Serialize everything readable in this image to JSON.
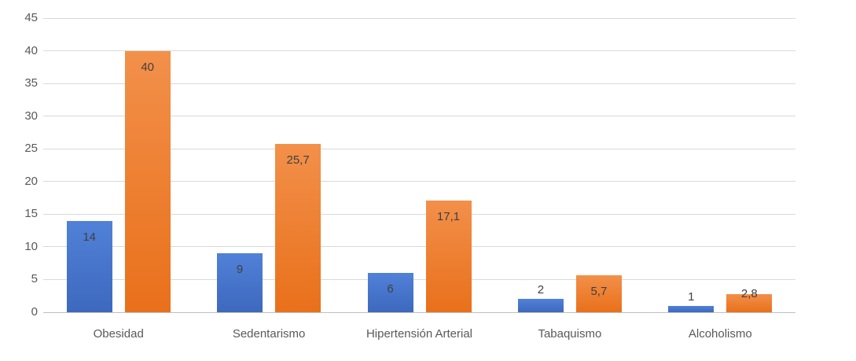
{
  "chart_data": {
    "type": "bar",
    "title": "",
    "categories": [
      "Obesidad",
      "Sedentarismo",
      "Hipertensión Arterial",
      "Tabaquismo",
      "Alcoholismo"
    ],
    "series": [
      {
        "color": "#4472C4",
        "color_top": "#5181D8",
        "color_bottom": "#3D68BE",
        "values": [
          14,
          9,
          6,
          2,
          1
        ],
        "labels": [
          "14",
          "9",
          "6",
          "2",
          "1"
        ]
      },
      {
        "color": "#ED7D31",
        "color_top": "#F2904A",
        "color_bottom": "#E9701B",
        "values": [
          40,
          25.7,
          17.1,
          5.7,
          2.8
        ],
        "labels": [
          "40",
          "25,7",
          "17,1",
          "5,7",
          "2,8"
        ]
      }
    ],
    "y_axis": {
      "min": 0,
      "max": 45,
      "step": 5,
      "tick_labels": [
        "0",
        "5",
        "10",
        "15",
        "20",
        "25",
        "30",
        "35",
        "40",
        "45"
      ]
    },
    "grid": "horizontal",
    "legend": "none",
    "decimal_separator": ",",
    "colors": {
      "gridline": "#D9D9D9",
      "axis_line": "#BFBFBF",
      "tick_text": "#595959",
      "category_text": "#595959",
      "data_label_text": "#404040"
    }
  }
}
